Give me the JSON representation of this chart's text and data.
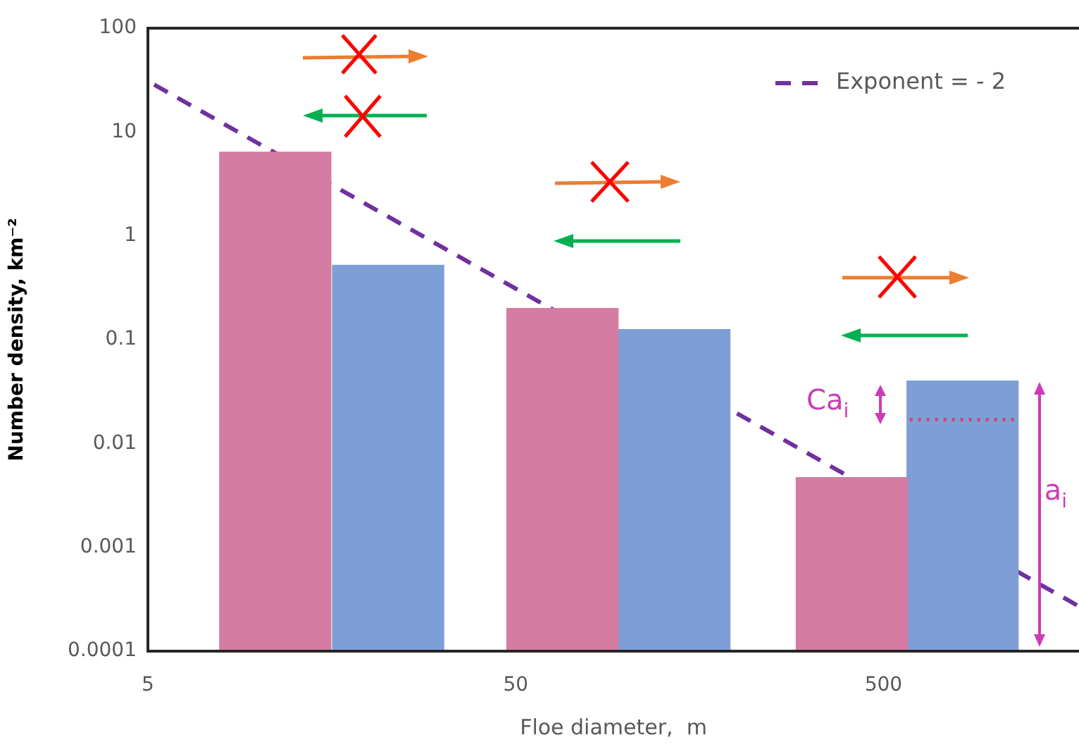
{
  "chart_data": {
    "type": "bar",
    "xlabel": "Floe diameter,  m",
    "ylabel": "Number density, km⁻²",
    "log": "xy",
    "grid": false,
    "legend": "top right",
    "xlim": [
      5,
      1700
    ],
    "xticks": [
      5,
      50,
      500
    ],
    "ylim": [
      0.0001,
      100
    ],
    "yticks": [
      0.0001,
      0.001,
      0.01,
      0.1,
      1,
      10,
      100
    ],
    "series": [
      {
        "color": "#d57ca2",
        "x": [
          11.1,
          67,
          410
        ],
        "values": [
          6.4,
          0.2,
          0.0047
        ]
      },
      {
        "color": "#7d9fd5",
        "x": [
          22.5,
          135,
          820
        ],
        "values": [
          0.52,
          0.125,
          0.04
        ]
      },
      {
        "type": "line",
        "name": "Exponent = - 2",
        "color": "#7030a0",
        "x": [
          5.2,
          1700
        ],
        "values": [
          28.6,
          0.00027
        ],
        "line_style": "dashed",
        "marker": "none"
      }
    ],
    "ref_lines": [
      {
        "axis": "y",
        "value": 0.017,
        "color": "#d8407a",
        "line_style": "dotted"
      }
    ],
    "annotations": [
      "Ca$_{i}$",
      "a$_{i}$"
    ]
  }
}
